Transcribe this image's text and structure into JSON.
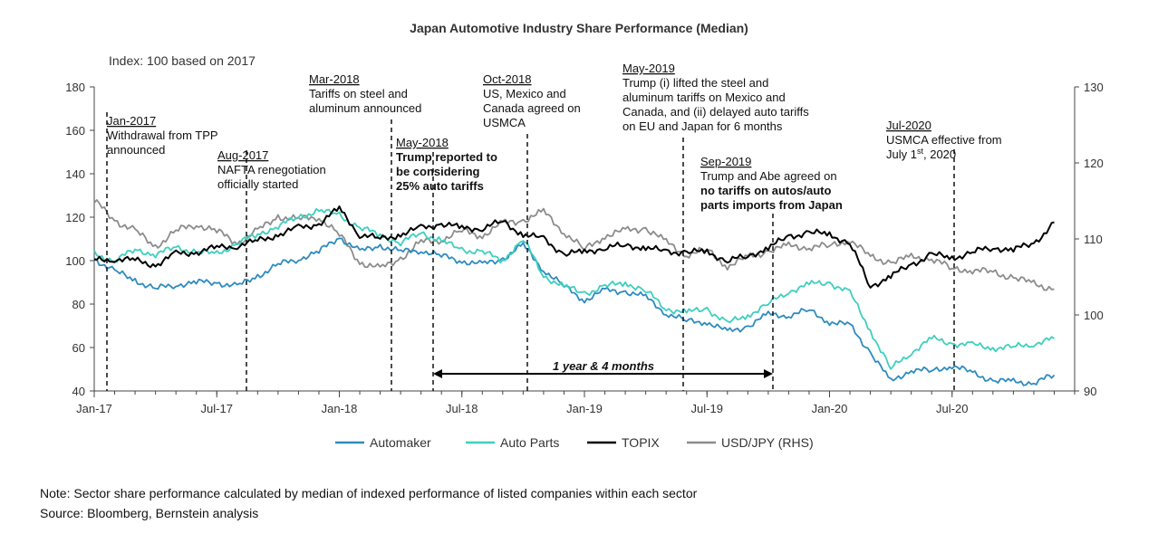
{
  "chart_data": {
    "type": "line",
    "title": "Japan Automotive Industry Share Performance (Median)",
    "subtitle": "Index: 100 based on 2017",
    "x_tick_labels": [
      "Jan-17",
      "Jul-17",
      "Jan-18",
      "Jul-18",
      "Jan-19",
      "Jul-19",
      "Jan-20",
      "Jul-20"
    ],
    "x_ticks": [
      "2017-01",
      "2017-07",
      "2018-01",
      "2018-07",
      "2019-01",
      "2019-07",
      "2020-01",
      "2020-07"
    ],
    "xlim": [
      "2017-01",
      "2020-12"
    ],
    "y_left": {
      "lim": [
        40,
        180
      ],
      "ticks": [
        "40",
        "60",
        "80",
        "100",
        "120",
        "140",
        "160",
        "180"
      ]
    },
    "y_right": {
      "lim": [
        90,
        130
      ],
      "ticks": [
        "90",
        "100",
        "110",
        "120",
        "130"
      ]
    },
    "legend_position": "bottom",
    "grid": false,
    "series": [
      {
        "name": "Automaker",
        "color": "#2e8bc0",
        "axis": "left",
        "x": [
          "2017-01",
          "2017-02",
          "2017-03",
          "2017-04",
          "2017-05",
          "2017-06",
          "2017-07",
          "2017-08",
          "2017-09",
          "2017-10",
          "2017-11",
          "2017-12",
          "2018-01",
          "2018-02",
          "2018-03",
          "2018-04",
          "2018-05",
          "2018-06",
          "2018-07",
          "2018-08",
          "2018-09",
          "2018-10",
          "2018-11",
          "2018-12",
          "2019-01",
          "2019-02",
          "2019-03",
          "2019-04",
          "2019-05",
          "2019-06",
          "2019-07",
          "2019-08",
          "2019-09",
          "2019-10",
          "2019-11",
          "2019-12",
          "2020-01",
          "2020-02",
          "2020-03",
          "2020-04",
          "2020-05",
          "2020-06",
          "2020-07",
          "2020-08",
          "2020-09",
          "2020-10",
          "2020-11",
          "2020-12"
        ],
        "y": [
          101,
          95,
          91,
          87,
          89,
          90,
          90,
          88,
          93,
          98,
          101,
          104,
          111,
          104,
          107,
          104,
          105,
          102,
          100,
          98,
          101,
          107,
          96,
          88,
          82,
          86,
          86,
          83,
          76,
          72,
          72,
          67,
          70,
          75,
          75,
          77,
          72,
          70,
          58,
          44,
          50,
          49,
          52,
          48,
          45,
          44,
          44,
          47
        ]
      },
      {
        "name": "Auto Parts",
        "color": "#3ecfbf",
        "axis": "left",
        "x": [
          "2017-01",
          "2017-02",
          "2017-03",
          "2017-04",
          "2017-05",
          "2017-06",
          "2017-07",
          "2017-08",
          "2017-09",
          "2017-10",
          "2017-11",
          "2017-12",
          "2018-01",
          "2018-02",
          "2018-03",
          "2018-04",
          "2018-05",
          "2018-06",
          "2018-07",
          "2018-08",
          "2018-09",
          "2018-10",
          "2018-11",
          "2018-12",
          "2019-01",
          "2019-02",
          "2019-03",
          "2019-04",
          "2019-05",
          "2019-06",
          "2019-07",
          "2019-08",
          "2019-09",
          "2019-10",
          "2019-11",
          "2019-12",
          "2020-01",
          "2020-02",
          "2020-03",
          "2020-04",
          "2020-05",
          "2020-06",
          "2020-07",
          "2020-08",
          "2020-09",
          "2020-10",
          "2020-11",
          "2020-12"
        ],
        "y": [
          103,
          100,
          105,
          103,
          106,
          104,
          103,
          108,
          112,
          116,
          120,
          123,
          121,
          115,
          112,
          108,
          113,
          109,
          105,
          104,
          100,
          110,
          93,
          88,
          85,
          88,
          90,
          86,
          78,
          76,
          78,
          71,
          75,
          80,
          86,
          89,
          90,
          85,
          68,
          50,
          58,
          64,
          62,
          61,
          60,
          60,
          62,
          64
        ]
      },
      {
        "name": "TOPIX",
        "color": "#000000",
        "axis": "left",
        "x": [
          "2017-01",
          "2017-02",
          "2017-03",
          "2017-04",
          "2017-05",
          "2017-06",
          "2017-07",
          "2017-08",
          "2017-09",
          "2017-10",
          "2017-11",
          "2017-12",
          "2018-01",
          "2018-02",
          "2018-03",
          "2018-04",
          "2018-05",
          "2018-06",
          "2018-07",
          "2018-08",
          "2018-09",
          "2018-10",
          "2018-11",
          "2018-12",
          "2019-01",
          "2019-02",
          "2019-03",
          "2019-04",
          "2019-05",
          "2019-06",
          "2019-07",
          "2019-08",
          "2019-09",
          "2019-10",
          "2019-11",
          "2019-12",
          "2020-01",
          "2020-02",
          "2020-03",
          "2020-04",
          "2020-05",
          "2020-06",
          "2020-07",
          "2020-08",
          "2020-09",
          "2020-10",
          "2020-11",
          "2020-12"
        ],
        "y": [
          100,
          101,
          100,
          98,
          103,
          104,
          106,
          107,
          109,
          112,
          115,
          117,
          124,
          112,
          110,
          112,
          115,
          117,
          115,
          115,
          118,
          112,
          110,
          103,
          104,
          106,
          107,
          106,
          104,
          104,
          104,
          100,
          102,
          106,
          111,
          113,
          112,
          108,
          88,
          93,
          98,
          103,
          101,
          104,
          106,
          105,
          108,
          117
        ]
      },
      {
        "name": "USD/JPY (RHS)",
        "color": "#8c8c8c",
        "axis": "right",
        "x": [
          "2017-01",
          "2017-02",
          "2017-03",
          "2017-04",
          "2017-05",
          "2017-06",
          "2017-07",
          "2017-08",
          "2017-09",
          "2017-10",
          "2017-11",
          "2017-12",
          "2018-01",
          "2018-02",
          "2018-03",
          "2018-04",
          "2018-05",
          "2018-06",
          "2018-07",
          "2018-08",
          "2018-09",
          "2018-10",
          "2018-11",
          "2018-12",
          "2019-01",
          "2019-02",
          "2019-03",
          "2019-04",
          "2019-05",
          "2019-06",
          "2019-07",
          "2019-08",
          "2019-09",
          "2019-10",
          "2019-11",
          "2019-12",
          "2020-01",
          "2020-02",
          "2020-03",
          "2020-04",
          "2020-05",
          "2020-06",
          "2020-07",
          "2020-08",
          "2020-09",
          "2020-10",
          "2020-11",
          "2020-12"
        ],
        "y": [
          115,
          112.5,
          111,
          109,
          111,
          112,
          111,
          109.5,
          111,
          113,
          112.5,
          113,
          110.5,
          107,
          106,
          107.5,
          109.5,
          110,
          111,
          110.5,
          112,
          112.5,
          113.5,
          111,
          108.5,
          110.5,
          111,
          111.5,
          109.5,
          108,
          108.5,
          106.5,
          107.5,
          108.5,
          109,
          109,
          109,
          110,
          107.5,
          107,
          107.5,
          107.5,
          106,
          106,
          105.5,
          105,
          104,
          103.5
        ]
      }
    ],
    "annotations": [
      {
        "date": "2017-01",
        "lines": [
          "Jan-2017",
          "Withdrawal from TPP",
          "announced"
        ]
      },
      {
        "date": "2017-08",
        "lines": [
          "Aug-2017",
          "NAFTA renegotiation",
          "officially started"
        ]
      },
      {
        "date": "2018-03",
        "lines": [
          "Mar-2018",
          "Tariffs on steel and",
          "aluminum announced"
        ]
      },
      {
        "date": "2018-05",
        "lines": [
          "May-2018",
          "Trump reported to",
          "be considering",
          "25% auto tariffs"
        ]
      },
      {
        "date": "2018-10",
        "lines": [
          "Oct-2018",
          "US, Mexico and",
          "Canada agreed on",
          "USMCA"
        ]
      },
      {
        "date": "2019-05",
        "lines": [
          "May-2019",
          "Trump (i) lifted the steel and",
          "aluminum tariffs on Mexico and",
          "Canada, and (ii) delayed auto tariffs",
          "on EU and Japan for 6 months"
        ]
      },
      {
        "date": "2019-09",
        "lines": [
          "Sep-2019",
          "Trump and Abe agreed on",
          "no tariffs on autos/auto",
          "parts imports from Japan"
        ]
      },
      {
        "date": "2020-07",
        "lines": [
          "Jul-2020",
          "USMCA effective from",
          "July 1",
          "st",
          ", 2020"
        ]
      }
    ],
    "span_label": "1 year & 4 months"
  },
  "footer": {
    "note": "Note: Sector share performance calculated by median of indexed performance of listed companies within each sector",
    "source": "Source: Bloomberg, Bernstein analysis"
  }
}
